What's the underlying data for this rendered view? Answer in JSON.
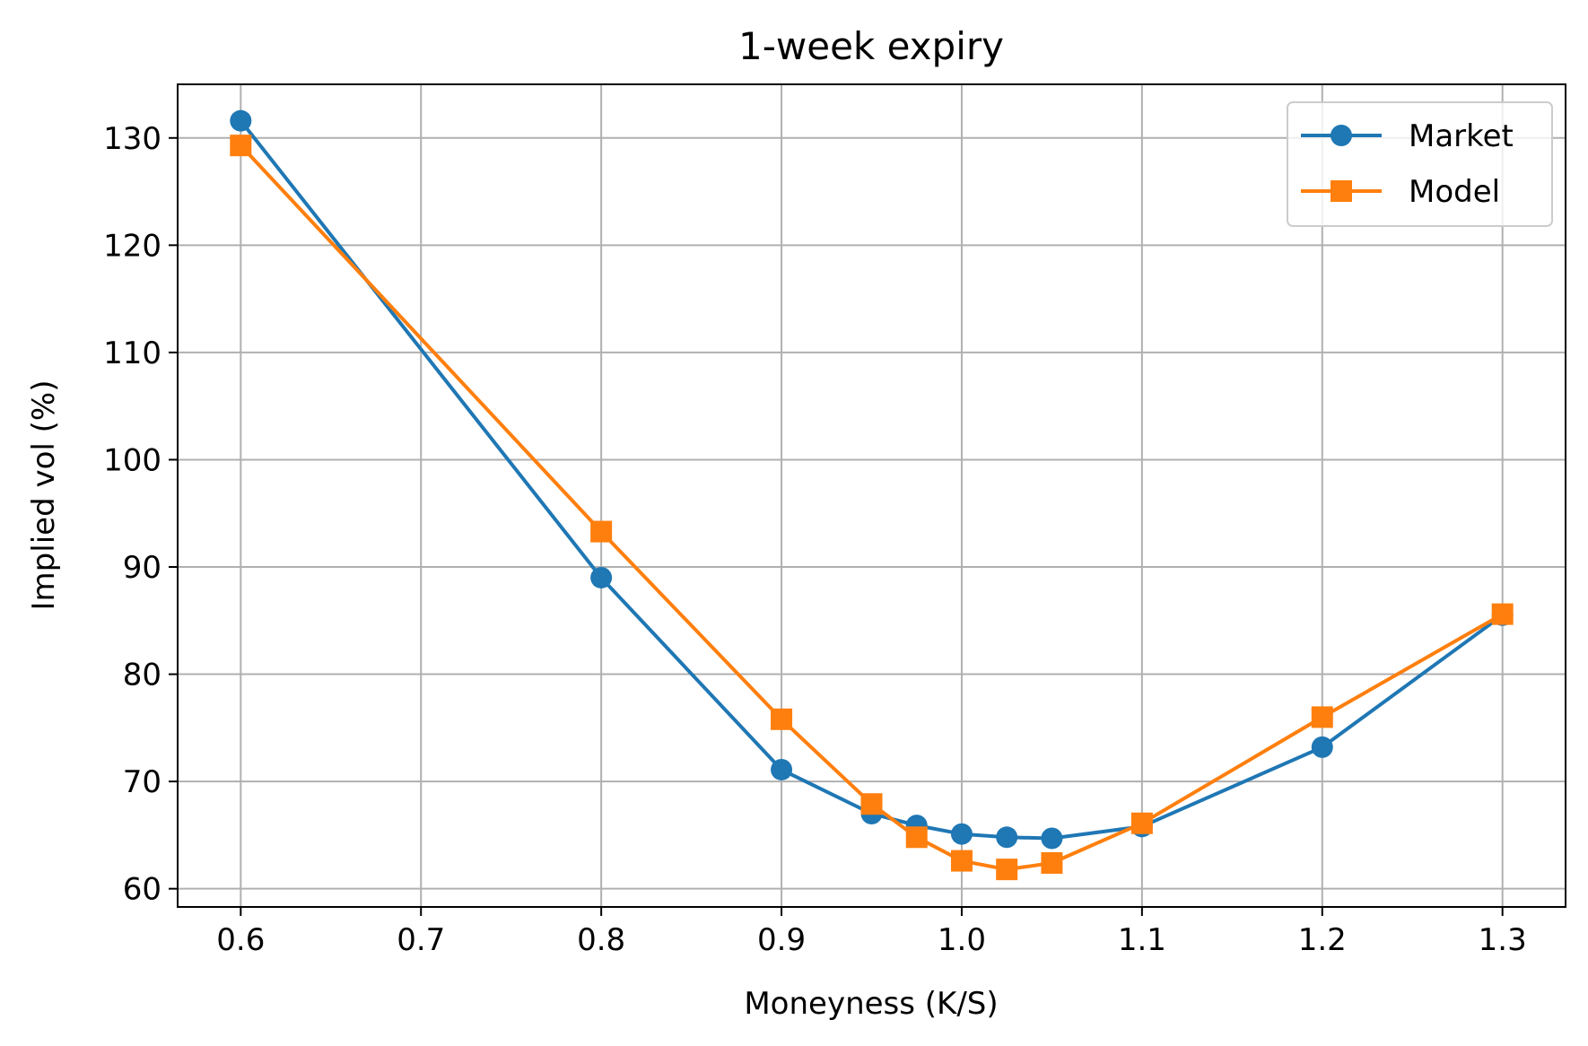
{
  "chart_data": {
    "type": "line",
    "title": "1-week expiry",
    "xlabel": "Moneyness (K/S)",
    "ylabel": "Implied vol (%)",
    "xlim": [
      0.565,
      1.335
    ],
    "ylim": [
      58.3,
      135.0
    ],
    "xticks": [
      0.6,
      0.7,
      0.8,
      0.9,
      1.0,
      1.1,
      1.2,
      1.3
    ],
    "xtick_labels": [
      "0.6",
      "0.7",
      "0.8",
      "0.9",
      "1.0",
      "1.1",
      "1.2",
      "1.3"
    ],
    "yticks": [
      60,
      70,
      80,
      90,
      100,
      110,
      120,
      130
    ],
    "ytick_labels": [
      "60",
      "70",
      "80",
      "90",
      "100",
      "110",
      "120",
      "130"
    ],
    "grid": true,
    "legend": "top-right",
    "x": [
      0.6,
      0.8,
      0.9,
      0.95,
      0.975,
      1.0,
      1.025,
      1.05,
      1.1,
      1.2,
      1.3
    ],
    "series": [
      {
        "name": "Market",
        "color": "#1f77b4",
        "marker": "circle",
        "values": [
          131.6,
          89.0,
          71.1,
          67.0,
          65.9,
          65.1,
          64.8,
          64.7,
          65.8,
          73.2,
          85.5
        ]
      },
      {
        "name": "Model",
        "color": "#ff7f0e",
        "marker": "square",
        "values": [
          129.3,
          93.3,
          75.8,
          67.9,
          64.8,
          62.6,
          61.8,
          62.4,
          66.1,
          76.0,
          85.6
        ]
      }
    ]
  }
}
